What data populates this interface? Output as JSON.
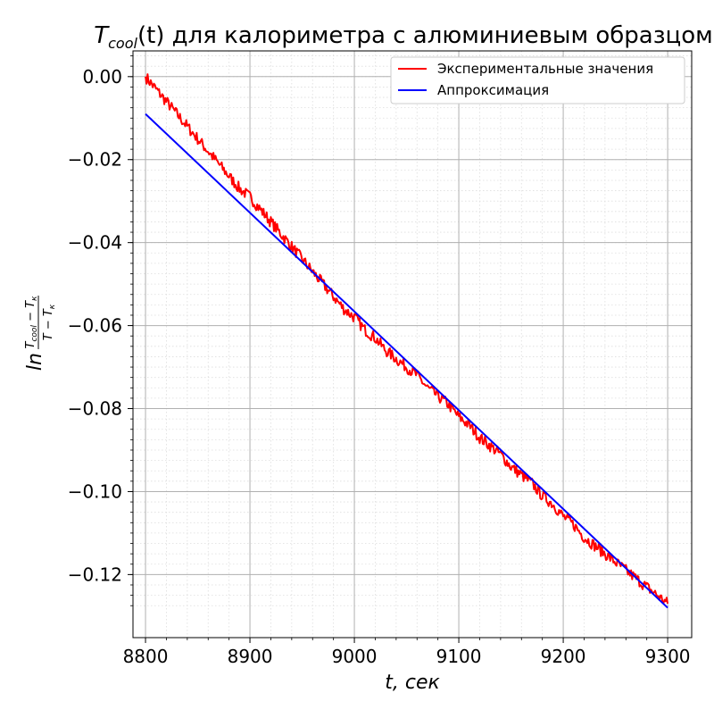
{
  "chart_data": {
    "type": "line",
    "title": {
      "main": "T",
      "sub": "cool",
      "rest": "(t) для калориметра с алюминиевым образцом"
    },
    "xlabel": {
      "italic": "t, сек",
      "text": "t, сек"
    },
    "ylabel": {
      "prefix": "ln",
      "num_main": "T",
      "num_sub": "cool",
      "num_rest": " − T",
      "num_sub2": "к",
      "den_main": "T − T",
      "den_sub": "к"
    },
    "xlim": [
      8788,
      9323
    ],
    "ylim": [
      -0.1352,
      0.0062
    ],
    "xticks": [
      8800,
      8900,
      9000,
      9100,
      9200,
      9300
    ],
    "xtick_labels": [
      "8800",
      "8900",
      "9000",
      "9100",
      "9200",
      "9300"
    ],
    "yticks": [
      0.0,
      -0.02,
      -0.04,
      -0.06,
      -0.08,
      -0.1,
      -0.12
    ],
    "ytick_labels": [
      "0.00",
      "−0.02",
      "−0.04",
      "−0.06",
      "−0.08",
      "−0.10",
      "−0.12"
    ],
    "grid": true,
    "minor_grid": true,
    "legend_position": "top-right",
    "series": [
      {
        "name": "Экспериментальные значения",
        "color": "#ff0000",
        "style": "noisy",
        "x": [
          8800,
          8810,
          8820,
          8830,
          8840,
          8850,
          8860,
          8870,
          8880,
          8890,
          8900,
          8910,
          8920,
          8930,
          8940,
          8950,
          8960,
          8970,
          8980,
          8990,
          9000,
          9010,
          9020,
          9030,
          9040,
          9050,
          9060,
          9070,
          9080,
          9090,
          9100,
          9110,
          9120,
          9130,
          9140,
          9150,
          9160,
          9170,
          9180,
          9190,
          9200,
          9210,
          9220,
          9230,
          9240,
          9250,
          9260,
          9270,
          9280,
          9290,
          9300
        ],
        "y": [
          0.0,
          -0.003,
          -0.006,
          -0.009,
          -0.012,
          -0.015,
          -0.018,
          -0.021,
          -0.024,
          -0.027,
          -0.029,
          -0.032,
          -0.035,
          -0.038,
          -0.041,
          -0.044,
          -0.047,
          -0.05,
          -0.053,
          -0.056,
          -0.058,
          -0.061,
          -0.063,
          -0.066,
          -0.068,
          -0.07,
          -0.072,
          -0.075,
          -0.077,
          -0.079,
          -0.082,
          -0.084,
          -0.087,
          -0.089,
          -0.091,
          -0.094,
          -0.096,
          -0.098,
          -0.101,
          -0.103,
          -0.106,
          -0.108,
          -0.111,
          -0.113,
          -0.115,
          -0.117,
          -0.119,
          -0.121,
          -0.123,
          -0.125,
          -0.127
        ]
      },
      {
        "name": "Аппроксимация",
        "color": "#0000ff",
        "style": "line",
        "x": [
          8800,
          9300
        ],
        "y": [
          -0.009,
          -0.128
        ]
      }
    ]
  }
}
